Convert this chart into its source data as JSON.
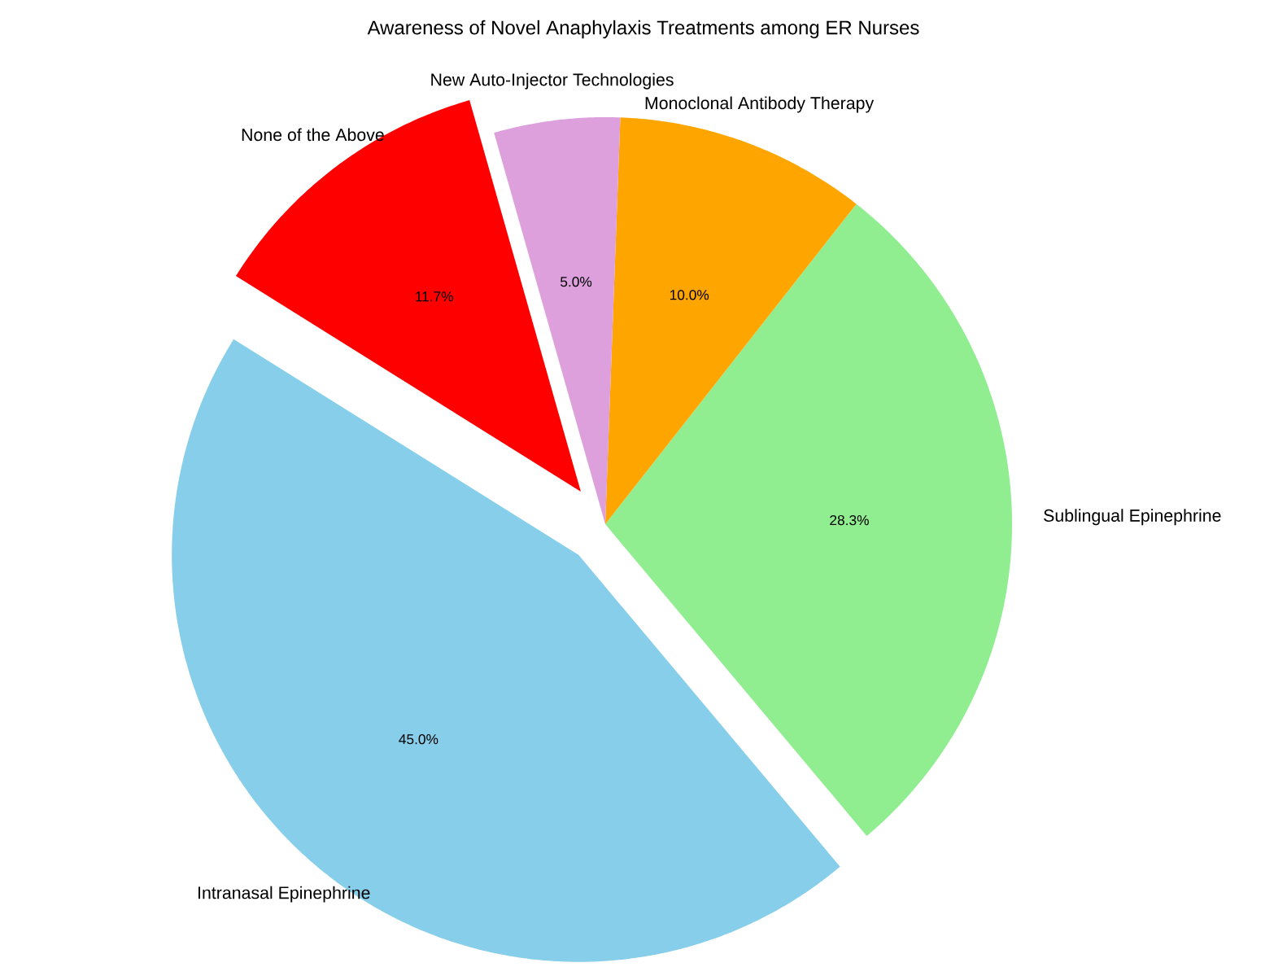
{
  "chart_data": {
    "type": "pie",
    "title": "Awareness of Novel Anaphylaxis Treatments among ER Nurses",
    "categories": [
      "Intranasal Epinephrine",
      "Sublingual Epinephrine",
      "Monoclonal Antibody Therapy",
      "New Auto-Injector Technologies",
      "None of the Above"
    ],
    "values": [
      45.0,
      28.3,
      10.0,
      5.0,
      11.7
    ],
    "value_labels": [
      "45.0%",
      "28.3%",
      "10.0%",
      "5.0%",
      "11.7%"
    ],
    "colors": [
      "#87ceeb",
      "#90ee90",
      "#ffa500",
      "#dda0dd",
      "#ff0000"
    ]
  }
}
